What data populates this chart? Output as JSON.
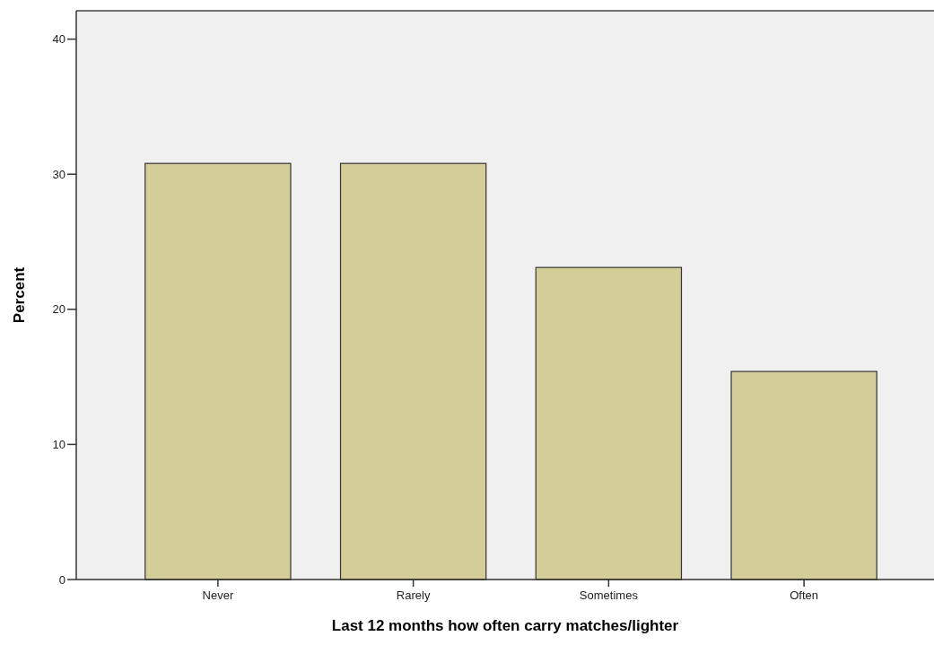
{
  "chart_data": {
    "type": "bar",
    "xlabel": "Last 12 months how often carry matches/lighter",
    "ylabel": "Percent",
    "categories": [
      "Never",
      "Rarely",
      "Sometimes",
      "Often"
    ],
    "values": [
      30.8,
      30.8,
      23.1,
      15.4
    ],
    "color": "#d3ce97",
    "ylim": [
      0,
      42.1
    ],
    "yticks": [
      0,
      10,
      20,
      30,
      40
    ],
    "grid": false
  }
}
